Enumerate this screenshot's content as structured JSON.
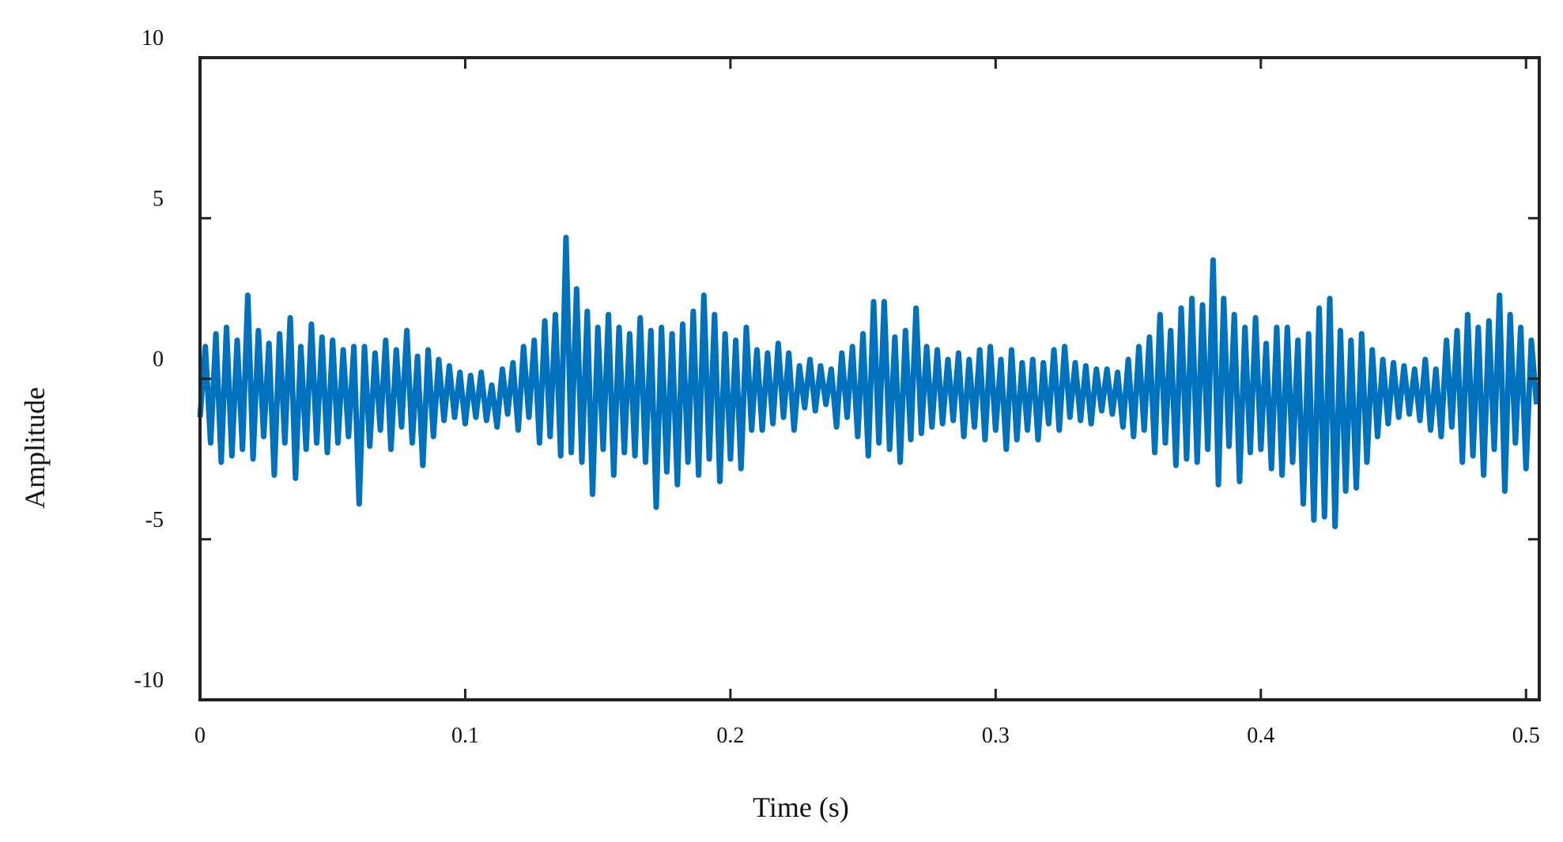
{
  "chart_data": {
    "type": "line",
    "title": "",
    "xlabel": "Time (s)",
    "ylabel": "Amplitude",
    "xlim": [
      0,
      0.505
    ],
    "ylim": [
      -10,
      10
    ],
    "xticks": [
      0,
      0.1,
      0.2,
      0.3,
      0.4,
      0.5
    ],
    "xtick_labels": [
      "0",
      "0.1",
      "0.2",
      "0.3",
      "0.4",
      "0.5"
    ],
    "yticks": [
      10,
      5,
      0,
      -5,
      -10
    ],
    "ytick_labels": [
      "10",
      "5",
      "0",
      "-5",
      "-10"
    ],
    "grid": false,
    "legend": "none",
    "line_color": "#0072BD",
    "series": [
      {
        "points": [
          [
            0.0,
            -1.2
          ],
          [
            0.002,
            1.0
          ],
          [
            0.004,
            -2.0
          ],
          [
            0.006,
            1.4
          ],
          [
            0.008,
            -2.6
          ],
          [
            0.01,
            1.6
          ],
          [
            0.012,
            -2.4
          ],
          [
            0.014,
            1.2
          ],
          [
            0.016,
            -2.2
          ],
          [
            0.018,
            2.6
          ],
          [
            0.02,
            -2.5
          ],
          [
            0.022,
            1.5
          ],
          [
            0.024,
            -1.8
          ],
          [
            0.026,
            1.1
          ],
          [
            0.028,
            -3.0
          ],
          [
            0.03,
            1.4
          ],
          [
            0.032,
            -2.0
          ],
          [
            0.034,
            1.9
          ],
          [
            0.036,
            -3.1
          ],
          [
            0.038,
            1.0
          ],
          [
            0.04,
            -2.2
          ],
          [
            0.042,
            1.7
          ],
          [
            0.044,
            -2.0
          ],
          [
            0.046,
            1.3
          ],
          [
            0.048,
            -2.3
          ],
          [
            0.05,
            1.2
          ],
          [
            0.052,
            -2.0
          ],
          [
            0.054,
            0.9
          ],
          [
            0.056,
            -1.8
          ],
          [
            0.058,
            1.0
          ],
          [
            0.06,
            -3.9
          ],
          [
            0.062,
            1.0
          ],
          [
            0.064,
            -2.1
          ],
          [
            0.066,
            0.8
          ],
          [
            0.068,
            -1.6
          ],
          [
            0.07,
            1.2
          ],
          [
            0.072,
            -2.2
          ],
          [
            0.074,
            0.9
          ],
          [
            0.076,
            -1.5
          ],
          [
            0.078,
            1.5
          ],
          [
            0.08,
            -2.0
          ],
          [
            0.082,
            0.7
          ],
          [
            0.084,
            -2.7
          ],
          [
            0.086,
            0.9
          ],
          [
            0.088,
            -1.8
          ],
          [
            0.09,
            0.6
          ],
          [
            0.092,
            -1.3
          ],
          [
            0.094,
            0.4
          ],
          [
            0.096,
            -1.2
          ],
          [
            0.098,
            0.2
          ],
          [
            0.1,
            -1.4
          ],
          [
            0.102,
            0.1
          ],
          [
            0.104,
            -1.2
          ],
          [
            0.106,
            0.2
          ],
          [
            0.108,
            -1.3
          ],
          [
            0.11,
            -0.2
          ],
          [
            0.112,
            -1.5
          ],
          [
            0.114,
            0.3
          ],
          [
            0.116,
            -1.1
          ],
          [
            0.118,
            0.5
          ],
          [
            0.12,
            -1.6
          ],
          [
            0.122,
            1.0
          ],
          [
            0.124,
            -1.2
          ],
          [
            0.126,
            1.2
          ],
          [
            0.128,
            -2.0
          ],
          [
            0.13,
            1.8
          ],
          [
            0.132,
            -1.8
          ],
          [
            0.134,
            2.0
          ],
          [
            0.136,
            -2.4
          ],
          [
            0.138,
            4.4
          ],
          [
            0.14,
            -2.3
          ],
          [
            0.142,
            2.8
          ],
          [
            0.144,
            -2.6
          ],
          [
            0.146,
            2.1
          ],
          [
            0.148,
            -3.6
          ],
          [
            0.15,
            1.6
          ],
          [
            0.152,
            -2.2
          ],
          [
            0.154,
            2.0
          ],
          [
            0.156,
            -3.0
          ],
          [
            0.158,
            1.6
          ],
          [
            0.16,
            -2.3
          ],
          [
            0.162,
            1.4
          ],
          [
            0.164,
            -2.4
          ],
          [
            0.166,
            1.9
          ],
          [
            0.168,
            -2.6
          ],
          [
            0.17,
            1.5
          ],
          [
            0.172,
            -4.0
          ],
          [
            0.174,
            1.6
          ],
          [
            0.176,
            -2.9
          ],
          [
            0.178,
            1.4
          ],
          [
            0.18,
            -3.3
          ],
          [
            0.182,
            1.7
          ],
          [
            0.184,
            -2.6
          ],
          [
            0.186,
            2.1
          ],
          [
            0.188,
            -3.0
          ],
          [
            0.19,
            2.6
          ],
          [
            0.192,
            -2.5
          ],
          [
            0.194,
            2.0
          ],
          [
            0.196,
            -3.2
          ],
          [
            0.198,
            1.4
          ],
          [
            0.2,
            -2.5
          ],
          [
            0.202,
            1.2
          ],
          [
            0.204,
            -2.8
          ],
          [
            0.206,
            1.6
          ],
          [
            0.208,
            -1.6
          ],
          [
            0.21,
            0.9
          ],
          [
            0.212,
            -1.6
          ],
          [
            0.214,
            0.8
          ],
          [
            0.216,
            -1.4
          ],
          [
            0.218,
            1.1
          ],
          [
            0.22,
            -1.2
          ],
          [
            0.222,
            0.8
          ],
          [
            0.224,
            -1.6
          ],
          [
            0.226,
            0.4
          ],
          [
            0.228,
            -0.9
          ],
          [
            0.23,
            0.6
          ],
          [
            0.232,
            -1.0
          ],
          [
            0.234,
            0.4
          ],
          [
            0.236,
            -0.8
          ],
          [
            0.238,
            0.3
          ],
          [
            0.24,
            -1.5
          ],
          [
            0.242,
            0.8
          ],
          [
            0.244,
            -1.2
          ],
          [
            0.246,
            1.0
          ],
          [
            0.248,
            -1.8
          ],
          [
            0.25,
            1.4
          ],
          [
            0.252,
            -2.4
          ],
          [
            0.254,
            2.4
          ],
          [
            0.256,
            -2.0
          ],
          [
            0.258,
            2.4
          ],
          [
            0.26,
            -2.2
          ],
          [
            0.262,
            1.3
          ],
          [
            0.264,
            -2.6
          ],
          [
            0.266,
            1.5
          ],
          [
            0.268,
            -1.9
          ],
          [
            0.27,
            2.2
          ],
          [
            0.272,
            -1.7
          ],
          [
            0.274,
            1.0
          ],
          [
            0.276,
            -1.5
          ],
          [
            0.278,
            0.9
          ],
          [
            0.28,
            -1.4
          ],
          [
            0.282,
            0.6
          ],
          [
            0.284,
            -1.3
          ],
          [
            0.286,
            0.8
          ],
          [
            0.288,
            -1.8
          ],
          [
            0.29,
            0.6
          ],
          [
            0.292,
            -1.5
          ],
          [
            0.294,
            0.9
          ],
          [
            0.296,
            -1.9
          ],
          [
            0.298,
            1.0
          ],
          [
            0.3,
            -1.6
          ],
          [
            0.302,
            0.6
          ],
          [
            0.304,
            -2.2
          ],
          [
            0.306,
            0.9
          ],
          [
            0.308,
            -1.9
          ],
          [
            0.31,
            0.5
          ],
          [
            0.312,
            -1.6
          ],
          [
            0.314,
            0.6
          ],
          [
            0.316,
            -1.9
          ],
          [
            0.318,
            0.5
          ],
          [
            0.32,
            -1.4
          ],
          [
            0.322,
            0.9
          ],
          [
            0.324,
            -1.6
          ],
          [
            0.326,
            1.0
          ],
          [
            0.328,
            -1.2
          ],
          [
            0.33,
            0.5
          ],
          [
            0.332,
            -1.3
          ],
          [
            0.334,
            0.4
          ],
          [
            0.336,
            -1.4
          ],
          [
            0.338,
            0.3
          ],
          [
            0.34,
            -1.0
          ],
          [
            0.342,
            0.3
          ],
          [
            0.344,
            -1.1
          ],
          [
            0.346,
            0.2
          ],
          [
            0.348,
            -1.5
          ],
          [
            0.35,
            0.6
          ],
          [
            0.352,
            -1.8
          ],
          [
            0.354,
            1.0
          ],
          [
            0.356,
            -1.6
          ],
          [
            0.358,
            1.3
          ],
          [
            0.36,
            -2.3
          ],
          [
            0.362,
            2.0
          ],
          [
            0.364,
            -2.0
          ],
          [
            0.366,
            1.5
          ],
          [
            0.368,
            -2.7
          ],
          [
            0.37,
            2.2
          ],
          [
            0.372,
            -2.5
          ],
          [
            0.374,
            2.5
          ],
          [
            0.376,
            -2.6
          ],
          [
            0.378,
            2.3
          ],
          [
            0.38,
            -2.2
          ],
          [
            0.382,
            3.7
          ],
          [
            0.384,
            -3.3
          ],
          [
            0.386,
            2.5
          ],
          [
            0.388,
            -2.1
          ],
          [
            0.39,
            2.0
          ],
          [
            0.392,
            -3.2
          ],
          [
            0.394,
            1.6
          ],
          [
            0.396,
            -2.3
          ],
          [
            0.398,
            1.9
          ],
          [
            0.4,
            -2.2
          ],
          [
            0.402,
            1.1
          ],
          [
            0.404,
            -2.8
          ],
          [
            0.406,
            1.6
          ],
          [
            0.408,
            -3.0
          ],
          [
            0.41,
            1.6
          ],
          [
            0.412,
            -2.6
          ],
          [
            0.414,
            1.2
          ],
          [
            0.416,
            -3.9
          ],
          [
            0.418,
            1.4
          ],
          [
            0.42,
            -4.4
          ],
          [
            0.422,
            2.2
          ],
          [
            0.424,
            -4.3
          ],
          [
            0.426,
            2.5
          ],
          [
            0.428,
            -4.6
          ],
          [
            0.43,
            1.5
          ],
          [
            0.432,
            -3.5
          ],
          [
            0.434,
            1.2
          ],
          [
            0.436,
            -3.4
          ],
          [
            0.438,
            1.4
          ],
          [
            0.44,
            -2.6
          ],
          [
            0.442,
            0.9
          ],
          [
            0.444,
            -1.8
          ],
          [
            0.446,
            0.6
          ],
          [
            0.448,
            -1.4
          ],
          [
            0.45,
            0.5
          ],
          [
            0.452,
            -1.2
          ],
          [
            0.454,
            0.4
          ],
          [
            0.456,
            -1.1
          ],
          [
            0.458,
            0.3
          ],
          [
            0.46,
            -1.3
          ],
          [
            0.462,
            0.6
          ],
          [
            0.464,
            -1.6
          ],
          [
            0.466,
            0.3
          ],
          [
            0.468,
            -1.8
          ],
          [
            0.47,
            1.2
          ],
          [
            0.472,
            -1.5
          ],
          [
            0.474,
            1.5
          ],
          [
            0.476,
            -2.6
          ],
          [
            0.478,
            2.0
          ],
          [
            0.48,
            -2.4
          ],
          [
            0.482,
            1.6
          ],
          [
            0.484,
            -3.0
          ],
          [
            0.486,
            1.8
          ],
          [
            0.488,
            -2.2
          ],
          [
            0.49,
            2.6
          ],
          [
            0.492,
            -3.5
          ],
          [
            0.494,
            2.0
          ],
          [
            0.496,
            -2.0
          ],
          [
            0.498,
            1.6
          ],
          [
            0.5,
            -2.8
          ],
          [
            0.502,
            1.2
          ],
          [
            0.504,
            -0.8
          ]
        ]
      }
    ]
  }
}
